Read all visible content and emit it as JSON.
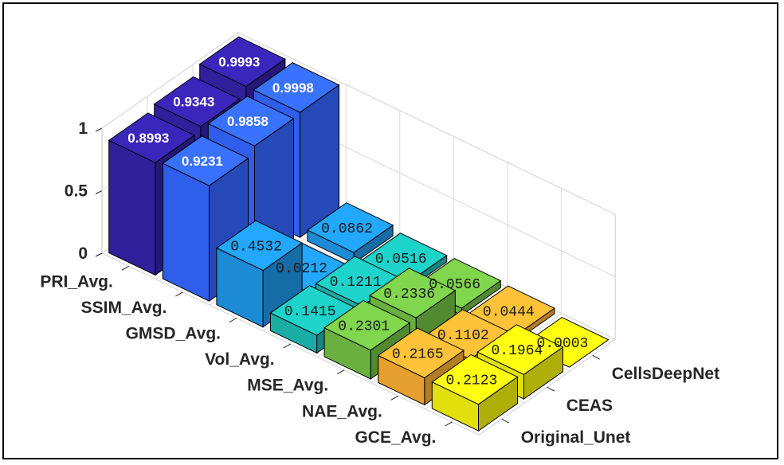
{
  "chart_data": {
    "type": "bar3d",
    "title": "",
    "categories": [
      "PRI_Avg.",
      "SSIM_Avg.",
      "GMSD_Avg.",
      "Vol_Avg.",
      "MSE_Avg.",
      "NAE_Avg.",
      "GCE_Avg."
    ],
    "series": [
      {
        "name": "Original_Unet",
        "values": [
          0.8993,
          0.9231,
          0.4532,
          0.1415,
          0.2301,
          0.2165,
          0.2123
        ]
      },
      {
        "name": "CEAS",
        "values": [
          0.9343,
          0.9858,
          0.0212,
          0.1211,
          0.2336,
          0.1102,
          0.1964
        ]
      },
      {
        "name": "CellsDeepNet",
        "values": [
          0.9993,
          0.9998,
          0.0862,
          0.0516,
          0.0566,
          0.0444,
          0.0003
        ]
      }
    ],
    "value_labels": [
      [
        "0.8993",
        "0.9231",
        "0.4532",
        "0.1415",
        "0.2301",
        "0.2165",
        "0.2123"
      ],
      [
        "0.9343",
        "0.9858",
        "0.0212",
        "0.1211",
        "0.2336",
        "0.1102",
        "0.1964"
      ],
      [
        "0.9993",
        "0.9998",
        "0.0862",
        "0.0516",
        "0.0566",
        "0.0444",
        "0.0003"
      ]
    ],
    "zaxis": {
      "ticks": [
        0,
        0.5,
        1
      ],
      "tick_labels": [
        "0",
        "0.5",
        "1"
      ],
      "zlim": [
        0,
        1
      ]
    },
    "colors": [
      "#3522a8",
      "#3366ff",
      "#1e96e8",
      "#1bbcb4",
      "#72bf44",
      "#f8ad32",
      "#f5f30e"
    ],
    "grid": true
  }
}
